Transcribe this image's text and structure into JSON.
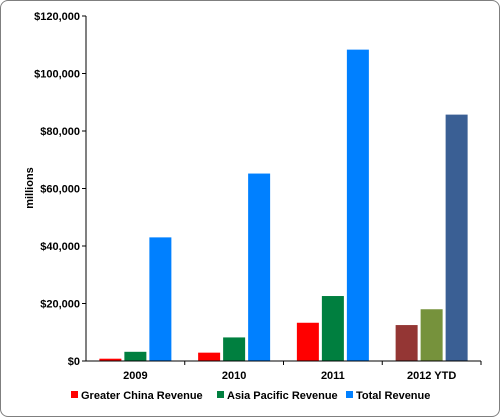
{
  "chart_data": {
    "type": "bar",
    "title": "",
    "xlabel": "",
    "ylabel": "millions",
    "ylim": [
      0,
      120000
    ],
    "yticks": [
      0,
      20000,
      40000,
      60000,
      80000,
      100000,
      120000
    ],
    "ytick_labels": [
      "$0",
      "$20,000",
      "$40,000",
      "$60,000",
      "$80,000",
      "$100,000",
      "$120,000"
    ],
    "categories": [
      "2009",
      "2010",
      "2011",
      "2012 YTD"
    ],
    "series": [
      {
        "name": "Greater China Revenue",
        "color": "#ff0000",
        "values": [
          800,
          2900,
          13300,
          12500
        ],
        "point_colors": [
          "#ff0000",
          "#ff0000",
          "#ff0000",
          "#943634"
        ]
      },
      {
        "name": "Asia Pacific Revenue",
        "color": "#007f3f",
        "values": [
          3200,
          8200,
          22600,
          18000
        ],
        "point_colors": [
          "#007f3f",
          "#007f3f",
          "#007f3f",
          "#76923c"
        ]
      },
      {
        "name": "Total Revenue",
        "color": "#0080ff",
        "values": [
          43000,
          65200,
          108300,
          85700
        ],
        "point_colors": [
          "#0080ff",
          "#0080ff",
          "#0080ff",
          "#3a5f94"
        ]
      }
    ],
    "grid": false,
    "legend_position": "bottom"
  }
}
